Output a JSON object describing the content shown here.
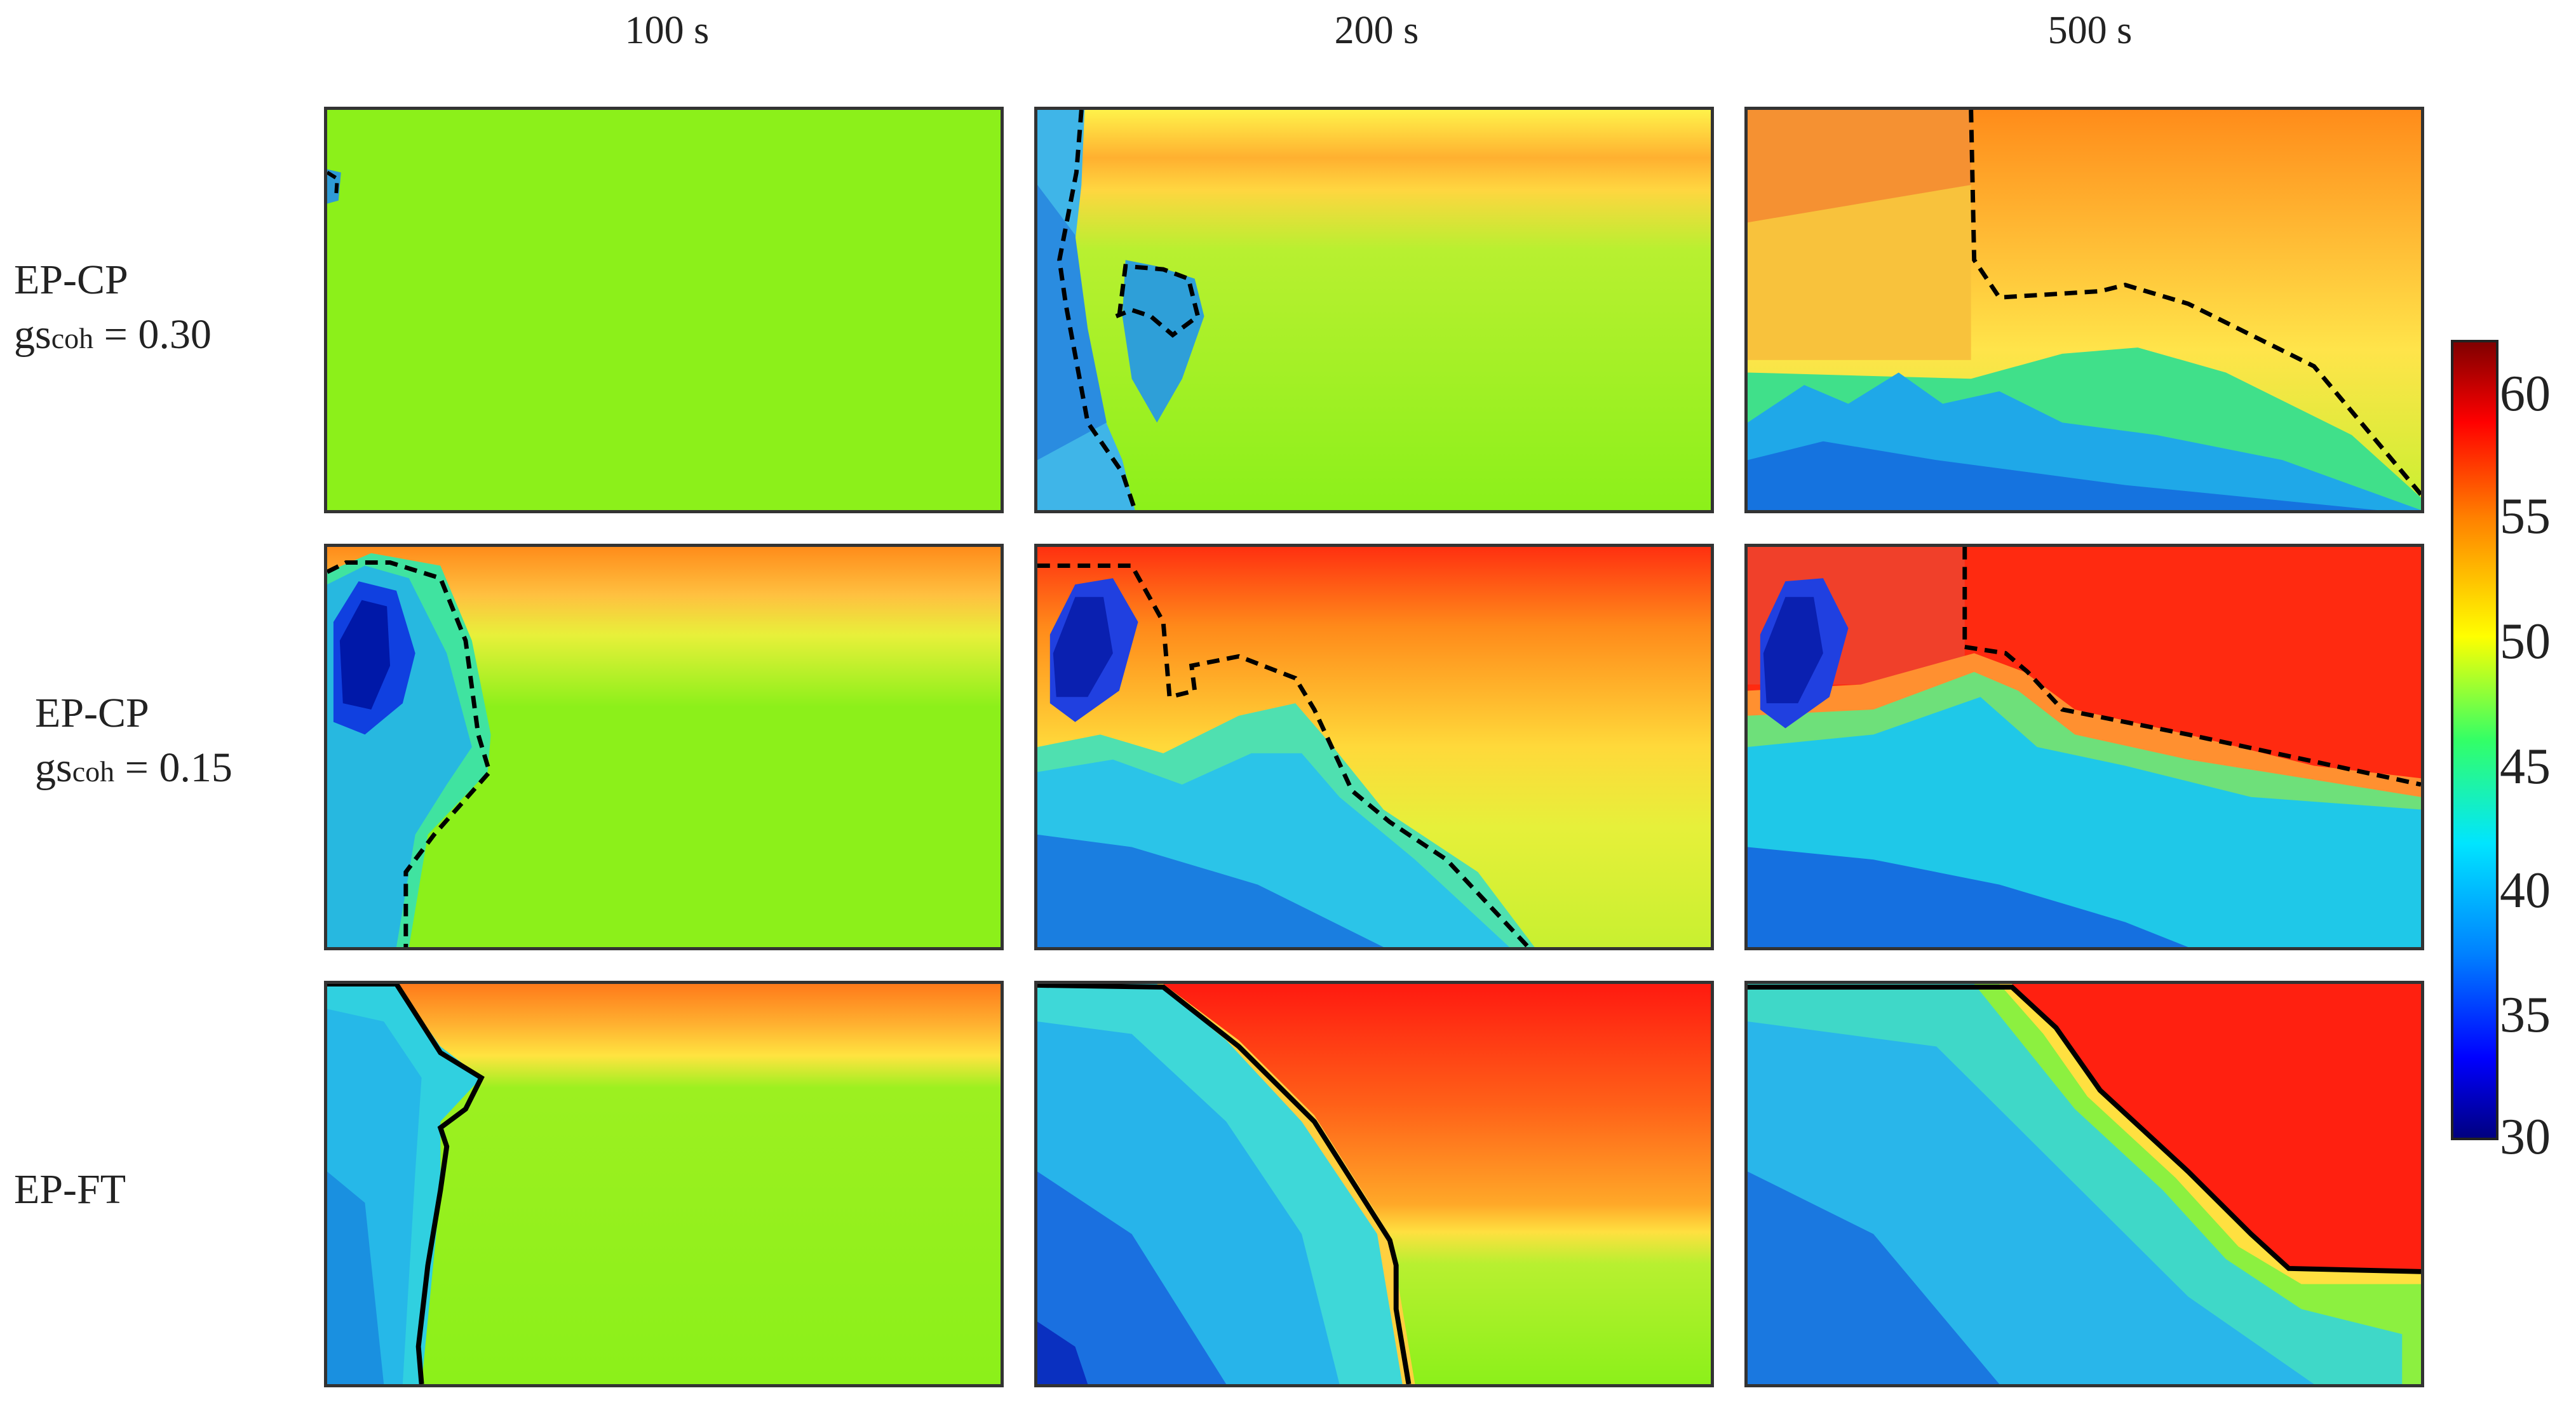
{
  "columns": [
    "100 s",
    "200 s",
    "500 s"
  ],
  "rows": [
    {
      "name": "EP-CP",
      "param_prefix": "gs",
      "param_sub": "coh",
      "param_value": " = 0.30"
    },
    {
      "name": "EP-CP",
      "param_prefix": "gs",
      "param_sub": "coh",
      "param_value": " = 0.15"
    },
    {
      "name": "EP-FT"
    }
  ],
  "colorbar": {
    "ticks": [
      "60",
      "55",
      "50",
      "45",
      "40",
      "35",
      "30"
    ],
    "colors": {
      "min": "#000080",
      "mid": "#33ff66",
      "max": "#800000"
    }
  }
}
